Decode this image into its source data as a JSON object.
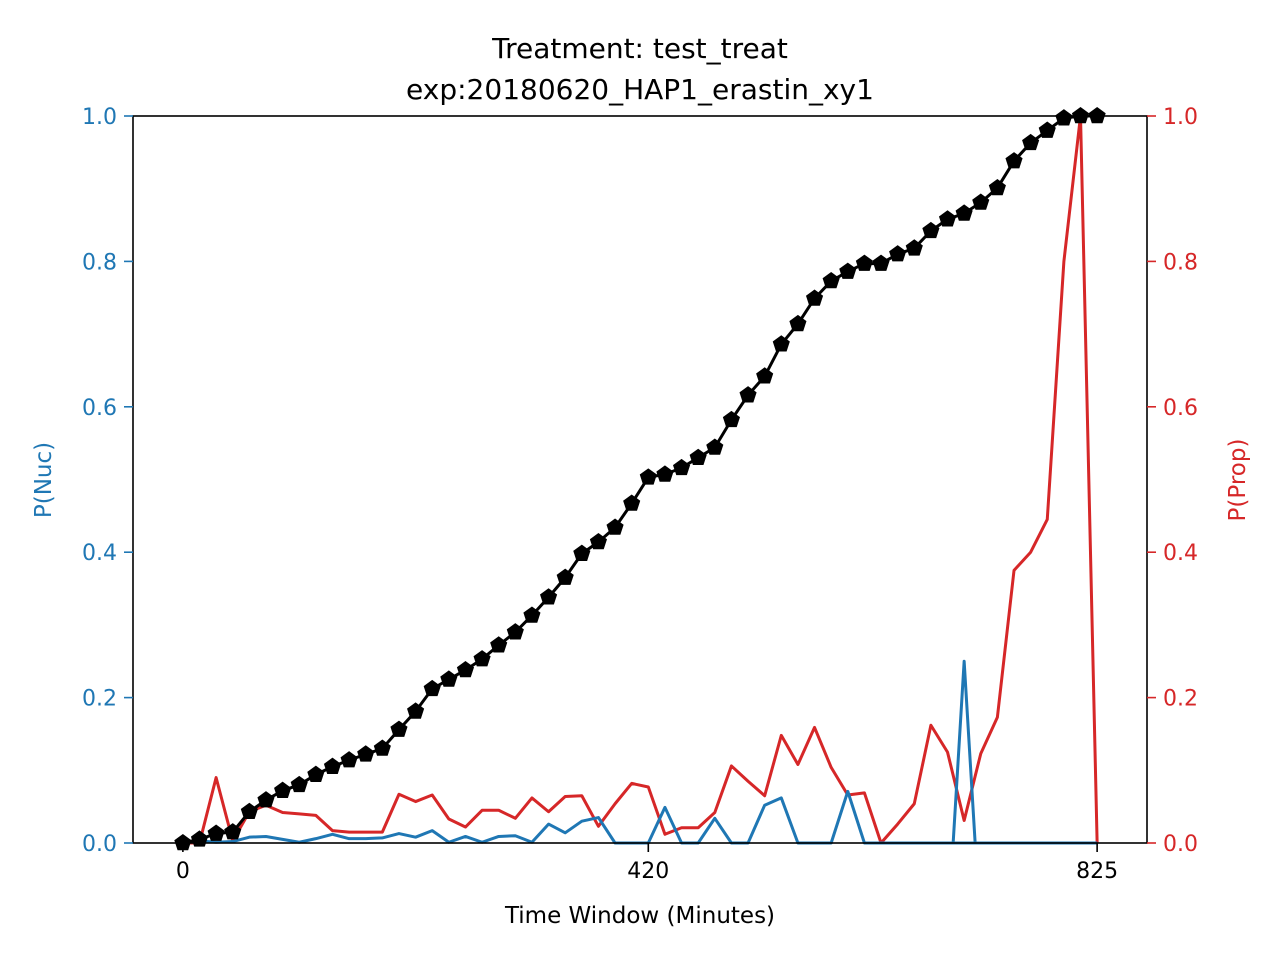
{
  "chart_data": {
    "type": "line",
    "title": "Treatment: test_treat",
    "subtitle": "exp:20180620_HAP1_erastin_xy1",
    "xlabel": "Time Window (Minutes)",
    "ylabel_left": "P(Nuc)",
    "ylabel_right": "P(Prop)",
    "xlim": [
      -45,
      870
    ],
    "ylim_left": [
      0,
      1
    ],
    "ylim_right": [
      0,
      1
    ],
    "x_ticks": [
      0,
      420,
      825
    ],
    "y_ticks_left": [
      "0.0",
      "0.2",
      "0.4",
      "0.6",
      "0.8",
      "1.0"
    ],
    "y_ticks_right": [
      "0.0",
      "0.2",
      "0.4",
      "0.6",
      "0.8",
      "1.0"
    ],
    "colors": {
      "nuc": "#1f77b4",
      "prop": "#d62728",
      "cumulative": "#000000"
    },
    "x": [
      0,
      15,
      30,
      45,
      60,
      75,
      90,
      105,
      120,
      135,
      150,
      165,
      180,
      195,
      210,
      225,
      240,
      255,
      270,
      285,
      300,
      315,
      330,
      345,
      360,
      375,
      390,
      405,
      420,
      435,
      450,
      465,
      480,
      495,
      510,
      525,
      540,
      555,
      570,
      585,
      600,
      615,
      630,
      645,
      660,
      675,
      690,
      705,
      720,
      735,
      750,
      765,
      780,
      795,
      810,
      825
    ],
    "series": [
      {
        "key": "nuc",
        "axis": "left",
        "values": [
          0.0,
          0.003,
          0.001,
          0.002,
          0.008,
          0.009,
          0.005,
          0.001,
          0.006,
          0.012,
          0.006,
          0.006,
          0.007,
          0.013,
          0.008,
          0.017,
          0.001,
          0.009,
          0.001,
          0.009,
          0.01,
          0.001,
          0.026,
          0.014,
          0.03,
          0.035,
          0.0,
          0.0,
          0.0,
          0.049,
          0.0,
          0.0,
          0.034,
          0.0,
          0.0,
          0.052,
          0.062,
          0.0,
          0.0,
          0.0,
          0.071,
          0.0,
          0.0,
          0.0,
          0.0,
          0.0,
          0.0,
          0.0,
          0.0,
          0.0,
          0.0,
          0.0,
          0.0,
          0.0,
          0.0,
          0.0
        ],
        "extra_spike": {
          "x": 705,
          "value": 0.25
        }
      },
      {
        "key": "prop",
        "axis": "right",
        "values": [
          0.0,
          0.0,
          0.09,
          0.003,
          0.043,
          0.052,
          0.042,
          0.04,
          0.038,
          0.017,
          0.015,
          0.015,
          0.015,
          0.067,
          0.057,
          0.066,
          0.033,
          0.022,
          0.045,
          0.045,
          0.034,
          0.062,
          0.043,
          0.064,
          0.065,
          0.023,
          0.054,
          0.082,
          0.077,
          0.012,
          0.021,
          0.021,
          0.042,
          0.106,
          0.085,
          0.065,
          0.148,
          0.108,
          0.159,
          0.104,
          0.066,
          0.069,
          0.0,
          0.026,
          0.054,
          0.162,
          0.125,
          0.031,
          0.123,
          0.173,
          0.375,
          0.4,
          0.445,
          0.8,
          1.0,
          0.0
        ]
      },
      {
        "key": "cumulative",
        "axis": "left",
        "marker": "pentagon",
        "values": [
          0.0,
          0.005,
          0.013,
          0.015,
          0.043,
          0.059,
          0.072,
          0.08,
          0.094,
          0.105,
          0.114,
          0.122,
          0.13,
          0.156,
          0.181,
          0.212,
          0.225,
          0.238,
          0.253,
          0.272,
          0.29,
          0.313,
          0.338,
          0.365,
          0.398,
          0.414,
          0.434,
          0.467,
          0.503,
          0.507,
          0.516,
          0.53,
          0.544,
          0.582,
          0.616,
          0.642,
          0.686,
          0.714,
          0.749,
          0.773,
          0.786,
          0.797,
          0.797,
          0.81,
          0.818,
          0.842,
          0.858,
          0.866,
          0.881,
          0.901,
          0.938,
          0.963,
          0.98,
          0.997,
          1.0,
          1.0
        ]
      }
    ]
  }
}
